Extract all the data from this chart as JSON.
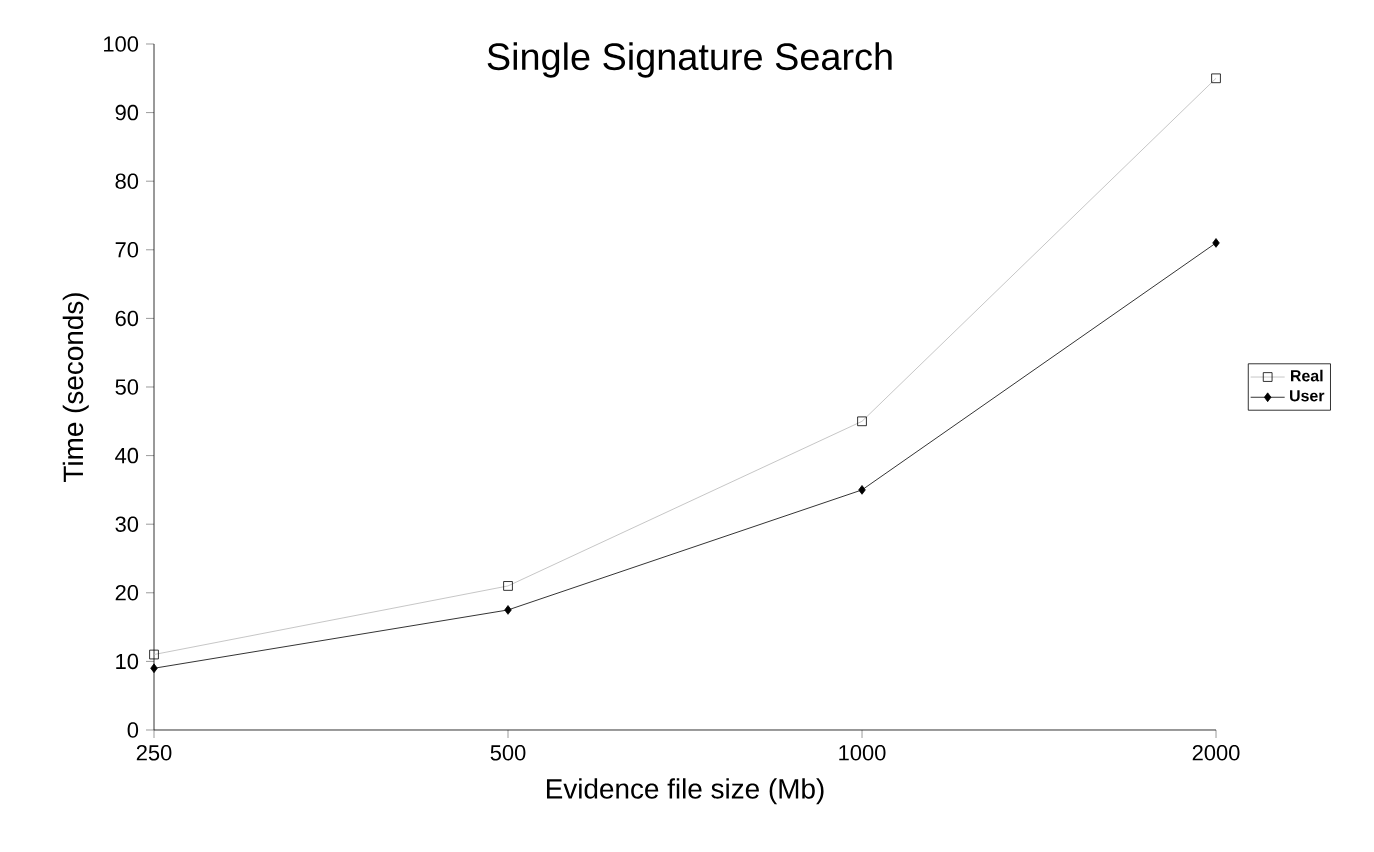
{
  "chart_data": {
    "type": "line",
    "title": "Single Signature Search",
    "xlabel": "Evidence file size (Mb)",
    "ylabel": "Time (seconds)",
    "categories": [
      "250",
      "500",
      "1000",
      "2000"
    ],
    "series": [
      {
        "name": "Real",
        "color": "#b8b8b8",
        "marker": "square",
        "values": [
          11,
          21,
          45,
          95
        ]
      },
      {
        "name": "User",
        "color": "#000000",
        "marker": "diamond",
        "values": [
          9,
          17.5,
          35,
          71
        ]
      }
    ],
    "ylim": [
      0,
      100
    ],
    "yticks": [
      0,
      10,
      20,
      30,
      40,
      50,
      60,
      70,
      80,
      90,
      100
    ],
    "grid": false,
    "legend": "right"
  }
}
